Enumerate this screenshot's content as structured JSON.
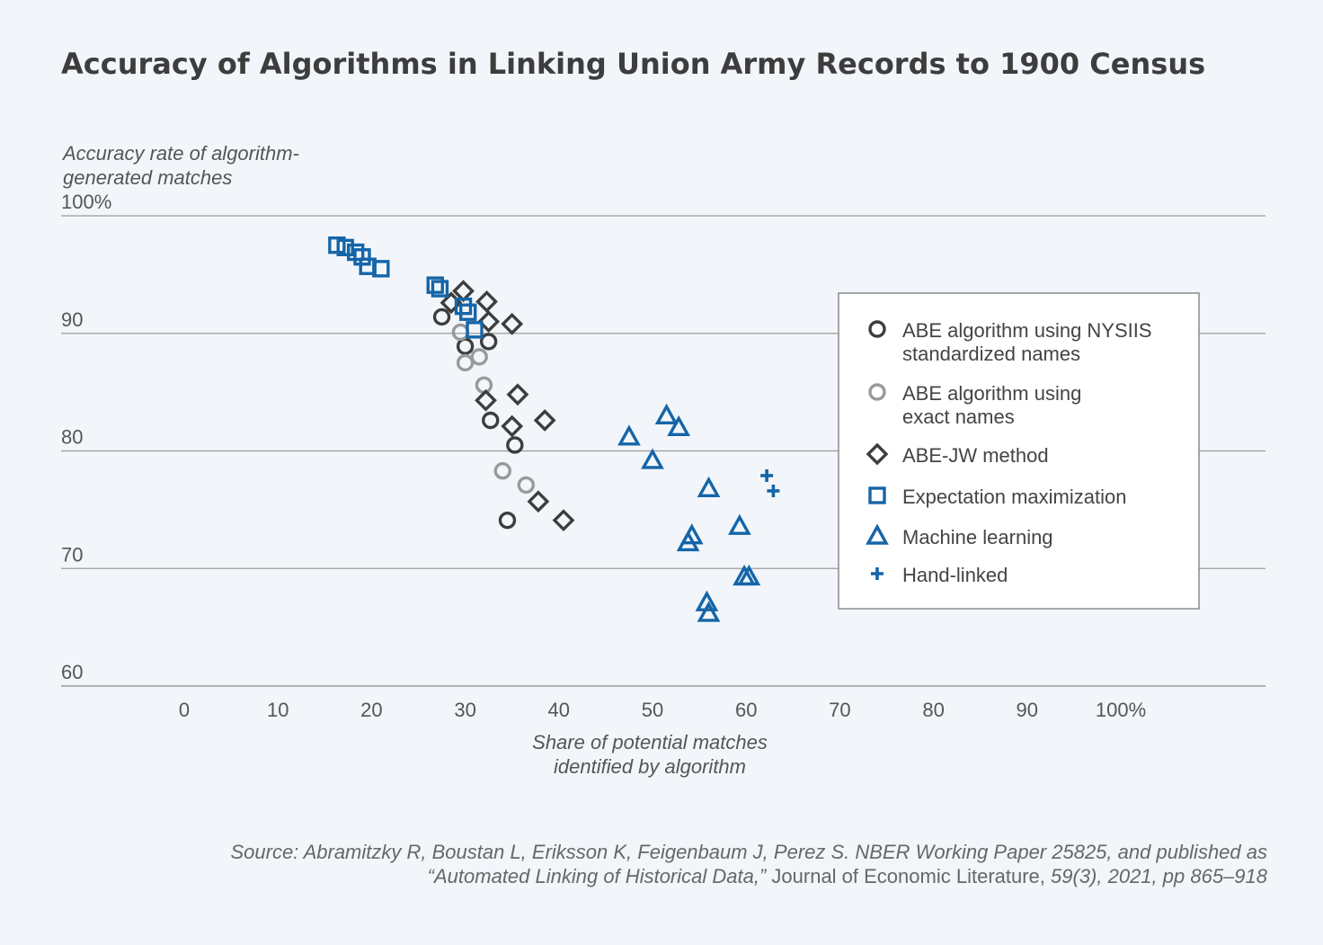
{
  "title": "Accuracy of Algorithms in Linking Union Army Records to 1900 Census",
  "source": {
    "line1": "Source: Abramitzky R, Boustan L, Eriksson K, Feigenbaum J, Perez S. NBER Working Paper 25825, and published as",
    "line2_italic_a": "“Automated Linking of Historical Data,”",
    "line2_plain": " Journal of Economic Literature,",
    "line2_italic_b": " 59(3), 2021, pp 865–918"
  },
  "colors": {
    "background": "#f2f6fa",
    "dark_gray": "#3d3d3d",
    "light_gray": "#999999",
    "blue": "#1565a8",
    "grid": "#9a9a9a"
  },
  "chart_data": {
    "type": "scatter",
    "title": "Accuracy of Algorithms in Linking Union Army Records to 1900 Census",
    "ylabel": "Accuracy rate of algorithm-generated matches",
    "xlabel": "Share of potential matches identified by algorithm",
    "xlim": [
      0,
      100
    ],
    "ylim": [
      60,
      100
    ],
    "x_ticks": [
      "0",
      "10",
      "20",
      "30",
      "40",
      "50",
      "60",
      "70",
      "80",
      "90",
      "100%"
    ],
    "y_ticks": [
      "60",
      "70",
      "80",
      "90",
      "100%"
    ],
    "grid": "horizontal",
    "legend_position": "right",
    "series": [
      {
        "name": "ABE algorithm using NYSIIS standardized names",
        "marker": "circle",
        "color": "#3d3d3d",
        "points": [
          [
            27.5,
            91.4
          ],
          [
            30.0,
            88.9
          ],
          [
            32.5,
            89.3
          ],
          [
            32.7,
            82.6
          ],
          [
            35.3,
            80.5
          ],
          [
            34.5,
            74.1
          ]
        ]
      },
      {
        "name": "ABE algorithm using exact names",
        "marker": "circle",
        "color": "#999999",
        "points": [
          [
            29.5,
            90.1
          ],
          [
            30.0,
            87.5
          ],
          [
            31.5,
            88.0
          ],
          [
            32.0,
            85.6
          ],
          [
            34.0,
            78.3
          ],
          [
            36.5,
            77.1
          ]
        ]
      },
      {
        "name": "ABE-JW method",
        "marker": "diamond",
        "color": "#3d3d3d",
        "points": [
          [
            29.8,
            93.6
          ],
          [
            28.5,
            92.6
          ],
          [
            32.3,
            92.7
          ],
          [
            32.5,
            91.0
          ],
          [
            35.0,
            90.8
          ],
          [
            35.6,
            84.8
          ],
          [
            32.2,
            84.3
          ],
          [
            35.0,
            82.1
          ],
          [
            38.5,
            82.6
          ],
          [
            37.8,
            75.7
          ],
          [
            40.5,
            74.1
          ]
        ]
      },
      {
        "name": "Expectation maximization",
        "marker": "square",
        "color": "#1565a8",
        "points": [
          [
            16.3,
            97.5
          ],
          [
            17.2,
            97.3
          ],
          [
            18.3,
            96.9
          ],
          [
            19.0,
            96.5
          ],
          [
            19.6,
            95.7
          ],
          [
            21.0,
            95.5
          ],
          [
            26.8,
            94.1
          ],
          [
            27.3,
            93.8
          ],
          [
            29.8,
            92.3
          ],
          [
            30.3,
            91.8
          ],
          [
            31.0,
            90.3
          ]
        ]
      },
      {
        "name": "Machine learning",
        "marker": "triangle",
        "color": "#1565a8",
        "points": [
          [
            47.5,
            81.2
          ],
          [
            51.5,
            83.0
          ],
          [
            52.8,
            82.0
          ],
          [
            50.0,
            79.2
          ],
          [
            56.0,
            76.8
          ],
          [
            54.2,
            72.8
          ],
          [
            53.8,
            72.2
          ],
          [
            59.3,
            73.6
          ],
          [
            59.8,
            69.3
          ],
          [
            60.3,
            69.3
          ],
          [
            55.8,
            67.1
          ],
          [
            56.0,
            66.2
          ]
        ]
      },
      {
        "name": "Hand-linked",
        "marker": "plus",
        "color": "#1565a8",
        "points": [
          [
            62.2,
            77.9
          ],
          [
            62.9,
            76.6
          ]
        ]
      }
    ],
    "legend": [
      {
        "marker": "circle",
        "color": "#3d3d3d",
        "line1": "ABE algorithm using NYSIIS",
        "line2": "standardized names"
      },
      {
        "marker": "circle",
        "color": "#999999",
        "line1": "ABE algorithm using",
        "line2": "exact names"
      },
      {
        "marker": "diamond",
        "color": "#3d3d3d",
        "line1": "ABE-JW method",
        "line2": ""
      },
      {
        "marker": "square",
        "color": "#1565a8",
        "line1": "Expectation maximization",
        "line2": ""
      },
      {
        "marker": "triangle",
        "color": "#1565a8",
        "line1": "Machine learning",
        "line2": ""
      },
      {
        "marker": "plus",
        "color": "#1565a8",
        "line1": "Hand-linked",
        "line2": ""
      }
    ]
  }
}
